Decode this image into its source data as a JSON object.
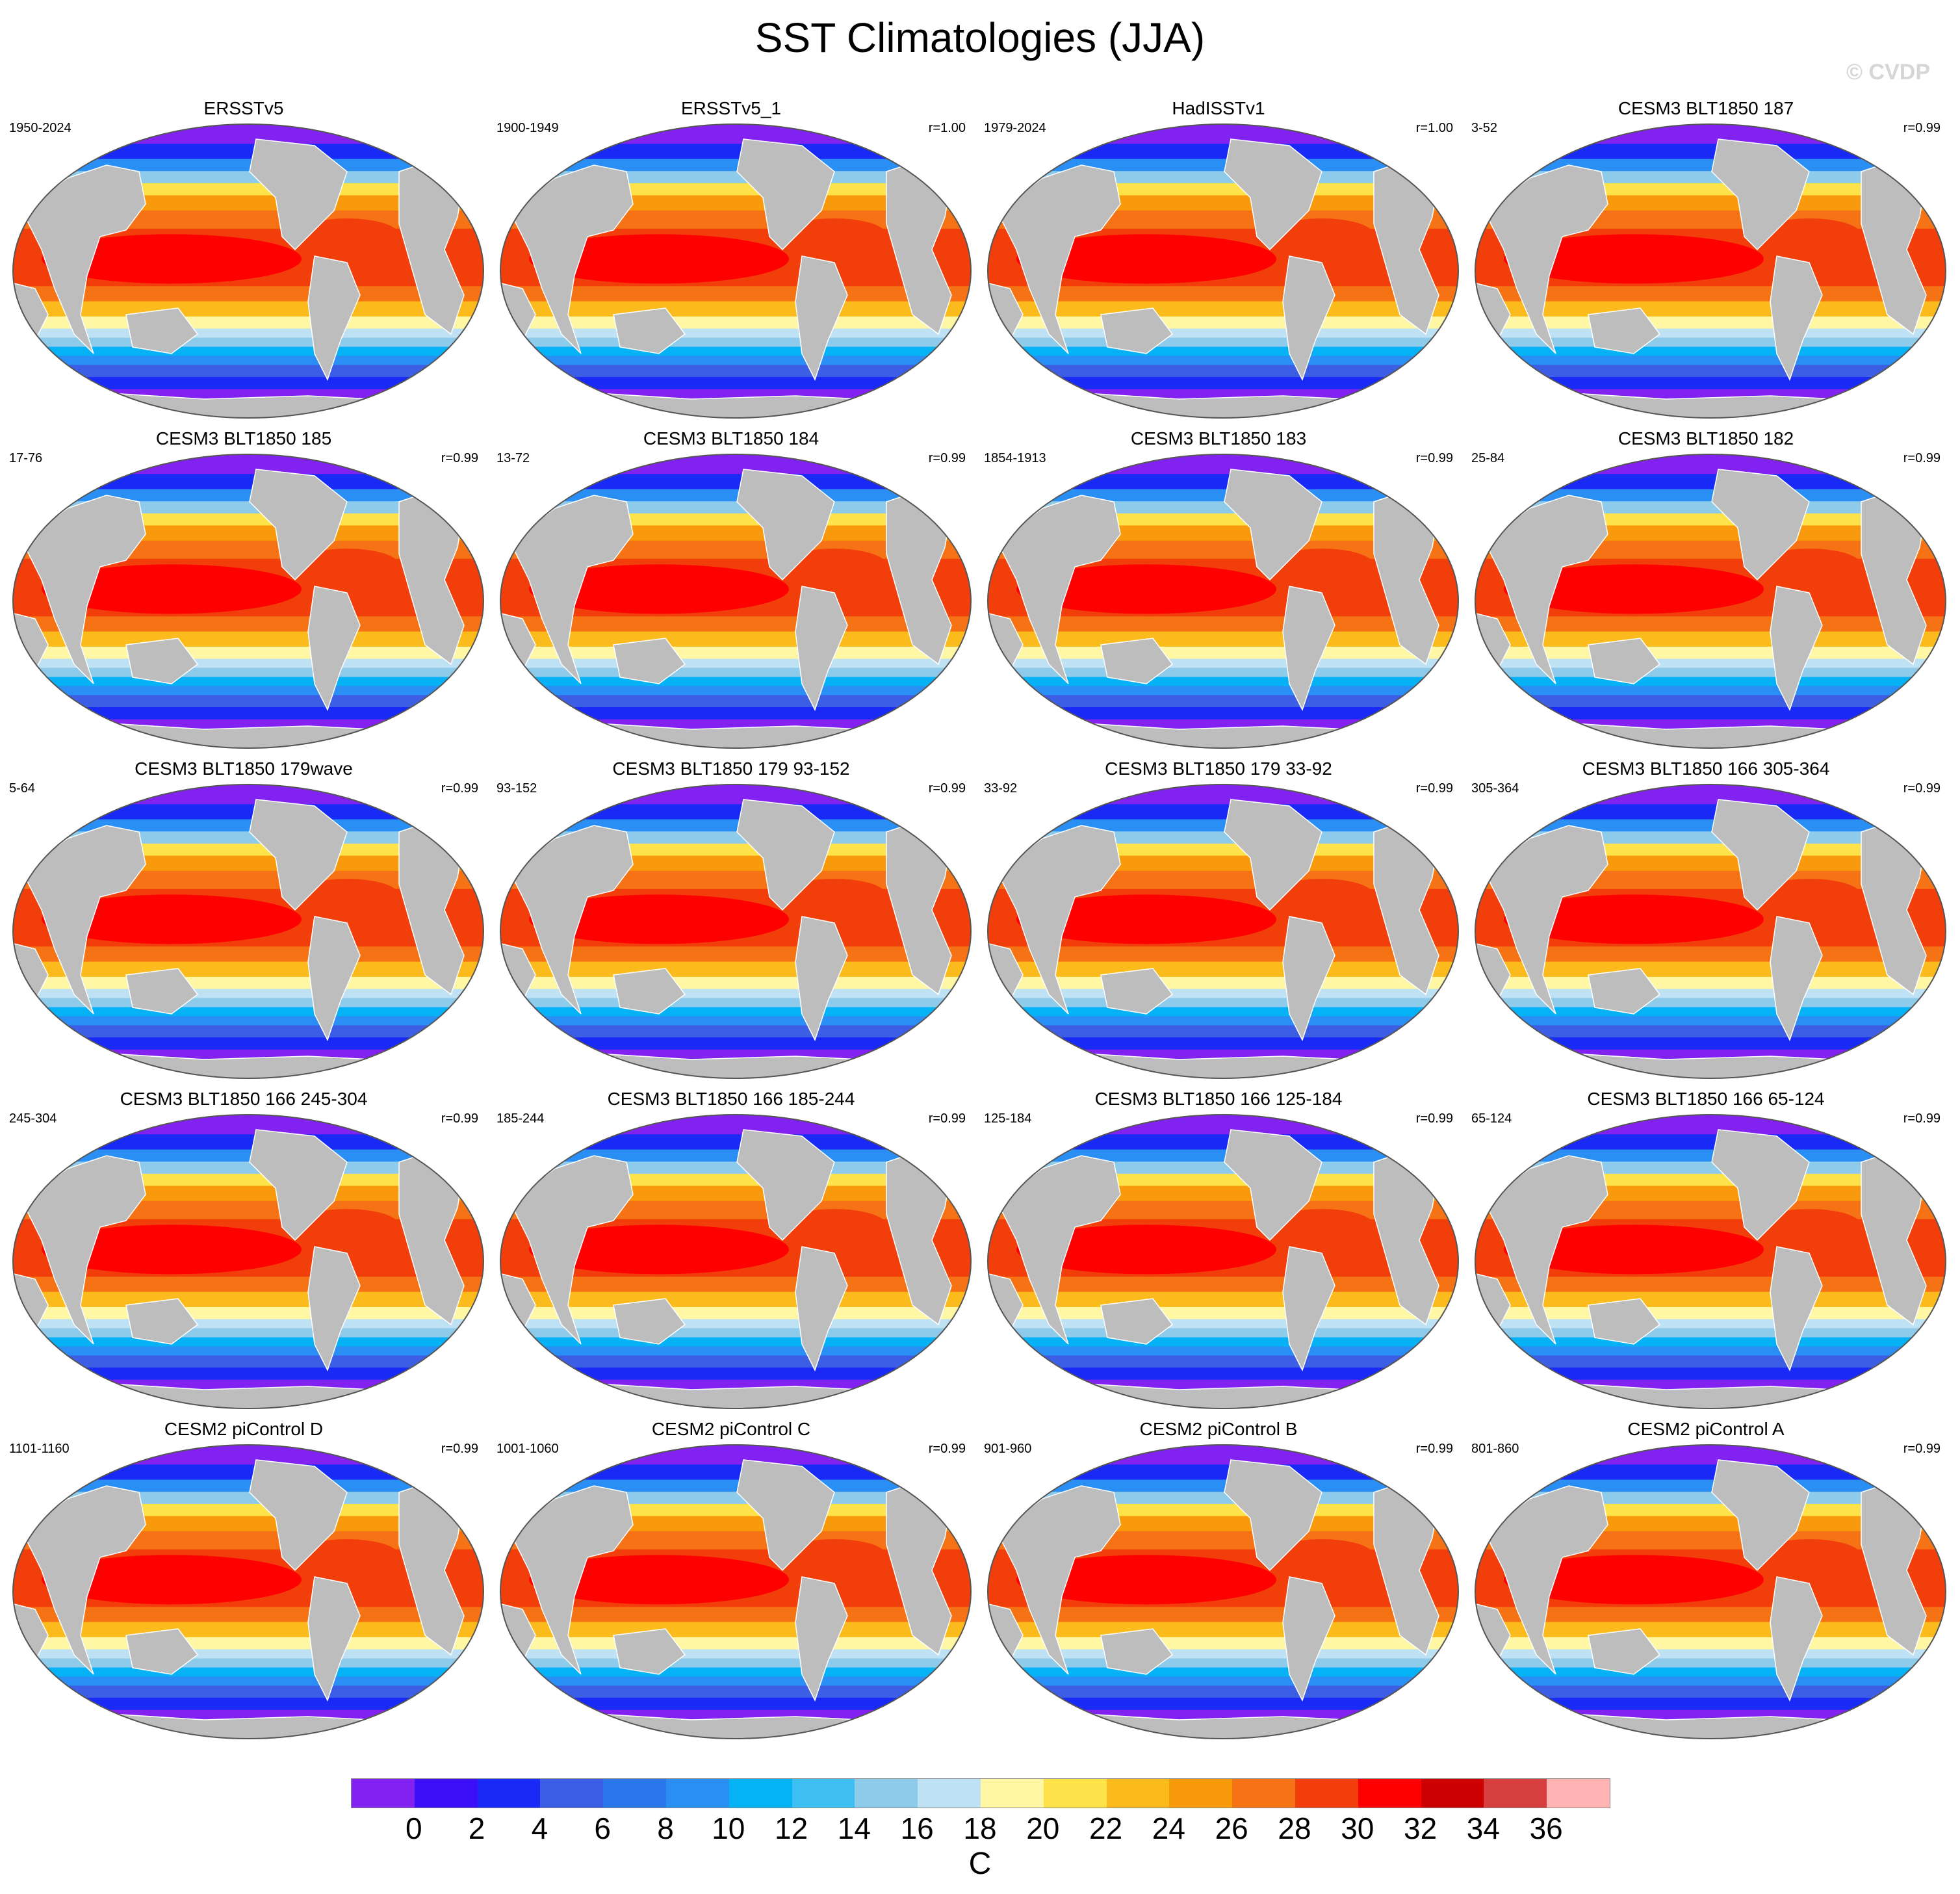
{
  "title": "SST Climatologies (JJA)",
  "watermark": "© CVDP",
  "panels": [
    {
      "title": "ERSSTv5",
      "period": "1950-2024",
      "corr": ""
    },
    {
      "title": "ERSSTv5_1",
      "period": "1900-1949",
      "corr": "r=1.00"
    },
    {
      "title": "HadISSTv1",
      "period": "1979-2024",
      "corr": "r=1.00"
    },
    {
      "title": "CESM3 BLT1850 187",
      "period": "3-52",
      "corr": "r=0.99"
    },
    {
      "title": "CESM3 BLT1850 185",
      "period": "17-76",
      "corr": "r=0.99"
    },
    {
      "title": "CESM3 BLT1850 184",
      "period": "13-72",
      "corr": "r=0.99"
    },
    {
      "title": "CESM3 BLT1850 183",
      "period": "1854-1913",
      "corr": "r=0.99"
    },
    {
      "title": "CESM3 BLT1850 182",
      "period": "25-84",
      "corr": "r=0.99"
    },
    {
      "title": "CESM3 BLT1850 179wave",
      "period": "5-64",
      "corr": "r=0.99"
    },
    {
      "title": "CESM3 BLT1850 179 93-152",
      "period": "93-152",
      "corr": "r=0.99"
    },
    {
      "title": "CESM3 BLT1850 179 33-92",
      "period": "33-92",
      "corr": "r=0.99"
    },
    {
      "title": "CESM3 BLT1850 166 305-364",
      "period": "305-364",
      "corr": "r=0.99"
    },
    {
      "title": "CESM3 BLT1850 166 245-304",
      "period": "245-304",
      "corr": "r=0.99"
    },
    {
      "title": "CESM3 BLT1850 166 185-244",
      "period": "185-244",
      "corr": "r=0.99"
    },
    {
      "title": "CESM3 BLT1850 166 125-184",
      "period": "125-184",
      "corr": "r=0.99"
    },
    {
      "title": "CESM3 BLT1850 166 65-124",
      "period": "65-124",
      "corr": "r=0.99"
    },
    {
      "title": "CESM2 piControl D",
      "period": "1101-1160",
      "corr": "r=0.99"
    },
    {
      "title": "CESM2 piControl C",
      "period": "1001-1060",
      "corr": "r=0.99"
    },
    {
      "title": "CESM2 piControl B",
      "period": "901-960",
      "corr": "r=0.99"
    },
    {
      "title": "CESM2 piControl A",
      "period": "801-860",
      "corr": "r=0.99"
    }
  ],
  "colorbar": {
    "units": "C",
    "colors": [
      "#8122f0",
      "#3c10f6",
      "#1a2af6",
      "#3b5ee5",
      "#2a76ea",
      "#2a8ff4",
      "#06b2f6",
      "#3ec0f4",
      "#8ecbea",
      "#bfe1f4",
      "#fff7a4",
      "#fde24a",
      "#fbbb1c",
      "#f99a0c",
      "#f67315",
      "#f23e0a",
      "#ff0000",
      "#cc0000",
      "#d73e3e",
      "#ffb3b3"
    ],
    "labels": [
      "0",
      "2",
      "4",
      "6",
      "8",
      "10",
      "12",
      "14",
      "16",
      "18",
      "20",
      "22",
      "24",
      "26",
      "28",
      "30",
      "32",
      "34",
      "36"
    ]
  },
  "map_colors": {
    "land": "#bdbdbd",
    "outline": "#555555"
  }
}
